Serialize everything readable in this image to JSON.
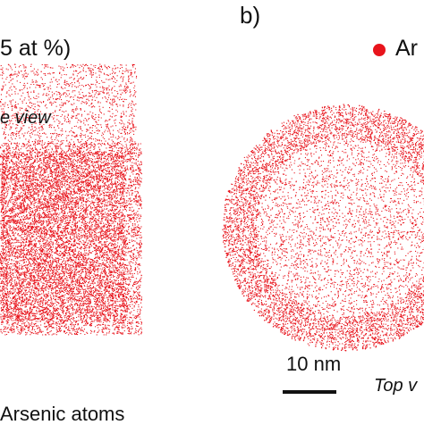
{
  "figure": {
    "panel_a": {
      "title_fragment": "5 at %)",
      "view_label_fragment": "e view",
      "legend_fragment": "Arsenic atoms"
    },
    "panel_b": {
      "panel_label": "b)",
      "legend_fragment": "Ar",
      "scale_bar_label": "10 nm",
      "view_label_fragment": "Top v"
    },
    "colors": {
      "atom": "#e8141c",
      "background": "#ffffff",
      "scale_bar": "#111111"
    }
  }
}
